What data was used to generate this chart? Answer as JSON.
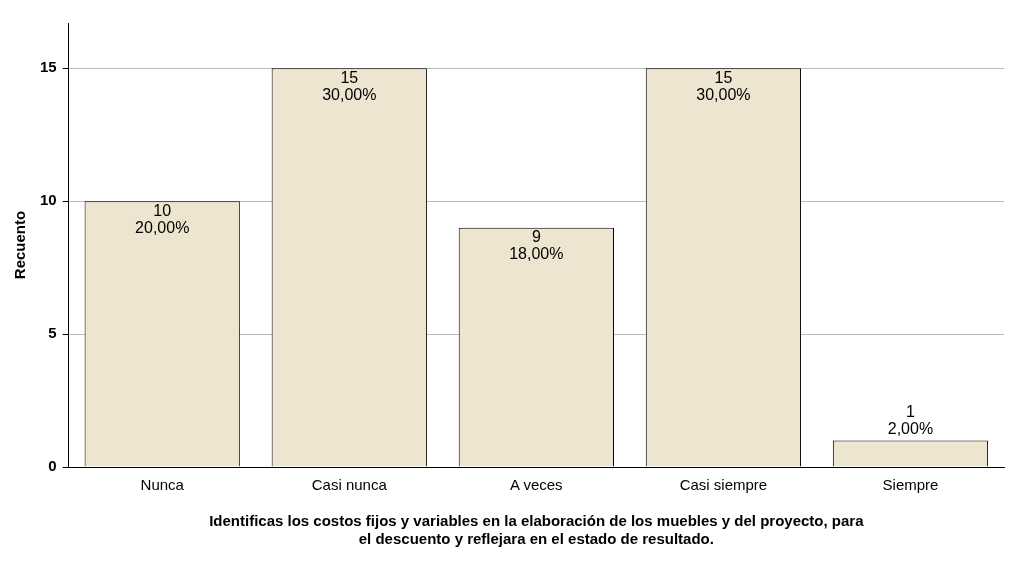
{
  "chart_data": {
    "type": "bar",
    "ylabel": "Recuento",
    "xlabel": "Identificas los costos fijos y variables en la elaboración de los muebles y del proyecto, para el descuento y reflejara en el estado de resultado.",
    "categories": [
      "Nunca",
      "Casi nunca",
      "A veces",
      "Casi siempre",
      "Siempre"
    ],
    "values": [
      10,
      15,
      9,
      15,
      1
    ],
    "value_labels": [
      "10\n20,00%",
      "15\n30,00%",
      "9\n18,00%",
      "15\n30,00%",
      "1\n2,00%"
    ],
    "color": "#ede5d0",
    "ylim": [
      0,
      16.7
    ],
    "yticks": [
      0,
      5,
      10,
      15
    ],
    "grid": "y",
    "legend": false
  }
}
